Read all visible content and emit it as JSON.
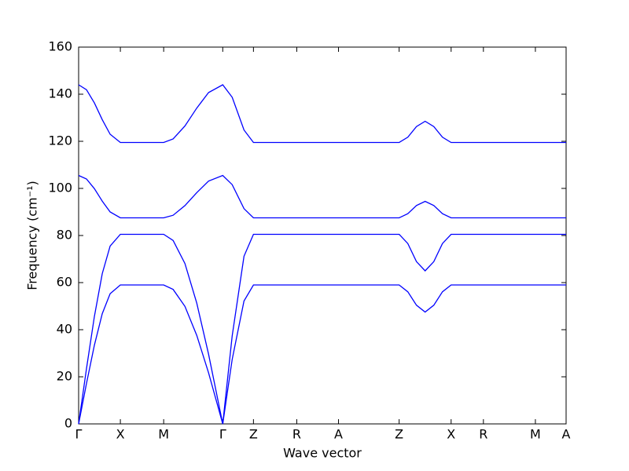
{
  "chart_data": {
    "type": "line",
    "xlabel": "Wave vector",
    "ylabel": "Frequency (cm⁻¹)",
    "x": [
      0,
      10,
      20,
      30,
      40,
      53,
      80,
      108,
      120,
      135,
      150,
      165,
      183,
      195,
      210,
      222,
      300,
      407,
      418,
      429,
      440,
      451,
      462,
      473,
      540,
      619
    ],
    "series": [
      {
        "color": "#0000ff",
        "values": [
          0,
          17.2,
          33.4,
          46.8,
          55.3,
          59,
          59,
          59,
          57.1,
          49.9,
          37.6,
          21.7,
          0,
          27.4,
          52.2,
          59,
          59,
          59,
          56.1,
          50.4,
          47.5,
          50.4,
          56.1,
          59,
          59,
          59
        ]
      },
      {
        "color": "#0000ff",
        "values": [
          0,
          23.5,
          45.6,
          63.8,
          75.5,
          80.5,
          80.5,
          80.5,
          77.9,
          68.1,
          51.3,
          29.6,
          0,
          37.4,
          71.2,
          80.5,
          80.5,
          80.5,
          76.6,
          68.9,
          65,
          68.9,
          76.6,
          80.5,
          80.5,
          80.5
        ]
      },
      {
        "color": "#0000ff",
        "values": [
          105.5,
          104.0,
          99.9,
          94.6,
          90.0,
          87.5,
          87.5,
          87.5,
          88.6,
          92.7,
          98.2,
          103.1,
          105.5,
          101.6,
          91.4,
          87.5,
          87.5,
          87.5,
          89.25,
          92.75,
          94.5,
          92.75,
          89.25,
          87.5,
          87.5,
          87.5
        ]
      },
      {
        "color": "#0000ff",
        "values": [
          144,
          141.9,
          136.3,
          129.2,
          123.0,
          119.5,
          119.5,
          119.5,
          121.0,
          126.5,
          134.1,
          140.7,
          144,
          138.7,
          124.8,
          119.5,
          119.5,
          119.5,
          121.75,
          126.25,
          128.5,
          126.25,
          121.75,
          119.5,
          119.5,
          119.5
        ]
      }
    ],
    "xlim": [
      0,
      619
    ],
    "xticks": [
      {
        "value": 0,
        "label": "Γ"
      },
      {
        "value": 53,
        "label": "X"
      },
      {
        "value": 108,
        "label": "M"
      },
      {
        "value": 183,
        "label": "Γ"
      },
      {
        "value": 222,
        "label": "Z"
      },
      {
        "value": 277,
        "label": "R"
      },
      {
        "value": 330,
        "label": "A"
      },
      {
        "value": 407,
        "label": "Z"
      },
      {
        "value": 473,
        "label": "X"
      },
      {
        "value": 514,
        "label": "R"
      },
      {
        "value": 580,
        "label": "M"
      },
      {
        "value": 619,
        "label": "A"
      }
    ],
    "ylim": [
      0,
      160
    ],
    "yticks": [
      0,
      20,
      40,
      60,
      80,
      100,
      120,
      140,
      160
    ]
  }
}
